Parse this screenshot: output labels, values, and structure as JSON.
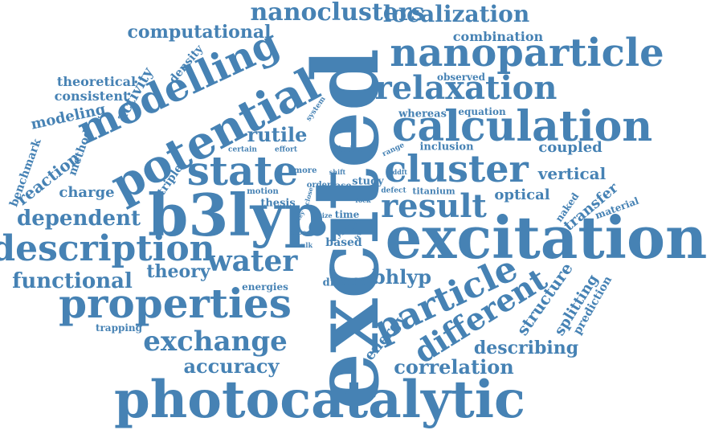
{
  "accent_color": "#4682b4",
  "background_color": "#ffffff",
  "words": [
    "excited",
    "excitation",
    "photocatalytic",
    "b3lyp",
    "calculation",
    "nanoparticle",
    "potential",
    "properties",
    "state",
    "modelling",
    "cluster",
    "description",
    "relaxation",
    "particle",
    "result",
    "different",
    "water",
    "exchange",
    "dependent",
    "functional",
    "nanoclusters",
    "localization",
    "computational",
    "rutile",
    "accuracy",
    "theory",
    "bhlyp",
    "charge",
    "correlation",
    "describing",
    "vertical",
    "coupled",
    "optical",
    "structure",
    "energy",
    "combination",
    "transfer",
    "splitting",
    "reaction",
    "benchmark",
    "modeling",
    "theoretical",
    "consistent",
    "activity",
    "density",
    "method",
    "triple",
    "trapping",
    "prediction",
    "material",
    "naked",
    "observed",
    "whereas",
    "equation",
    "inclusion",
    "energies",
    "dioxide",
    "based",
    "time",
    "titanium",
    "thesis",
    "motion",
    "study",
    "case",
    "order",
    "more",
    "certain",
    "effort",
    "similar",
    "system",
    "range",
    "defect",
    "tddft",
    "shift",
    "fock",
    "yield",
    "free",
    "size",
    "close",
    "bulk",
    "atey",
    "proc"
  ]
}
